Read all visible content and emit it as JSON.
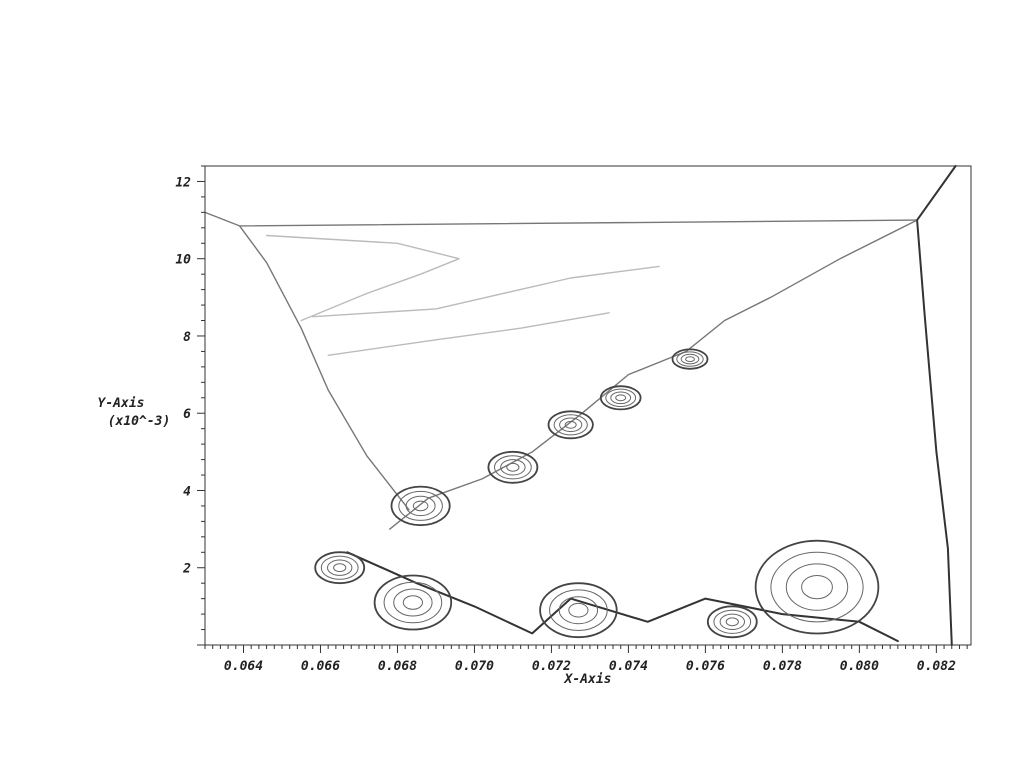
{
  "chart_data": {
    "type": "contour",
    "title": "",
    "xlabel": "X-Axis",
    "ylabel": "Y-Axis",
    "ylabel_scale": "(x10^-3)",
    "xlim": [
      0.063,
      0.0829
    ],
    "ylim": [
      0,
      12.4
    ],
    "x_ticks": [
      0.064,
      0.066,
      0.068,
      0.07,
      0.072,
      0.074,
      0.076,
      0.078,
      0.08,
      0.082
    ],
    "x_tick_labels": [
      "0.064",
      "0.066",
      "0.068",
      "0.070",
      "0.072",
      "0.074",
      "0.076",
      "0.078",
      "0.080",
      "0.082"
    ],
    "y_ticks": [
      2,
      4,
      6,
      8,
      10,
      12
    ],
    "y_tick_labels": [
      "2",
      "4",
      "6",
      "8",
      "10",
      "12"
    ],
    "grid": false,
    "legend": "none",
    "colors": {
      "dark": "#333333",
      "mid": "#777777",
      "light": "#bbbbbb"
    },
    "features": [
      {
        "name": "top-shock",
        "shade": "mid",
        "points": [
          [
            0.0639,
            10.85
          ],
          [
            0.0815,
            11.0
          ]
        ]
      },
      {
        "name": "left-shock",
        "shade": "mid",
        "points": [
          [
            0.063,
            11.2
          ],
          [
            0.0639,
            10.85
          ],
          [
            0.0646,
            9.9
          ],
          [
            0.0655,
            8.2
          ],
          [
            0.0662,
            6.6
          ],
          [
            0.0672,
            4.9
          ],
          [
            0.0683,
            3.5
          ]
        ]
      },
      {
        "name": "slip-line",
        "shade": "mid",
        "points": [
          [
            0.0815,
            11.0
          ],
          [
            0.0795,
            10.0
          ],
          [
            0.0777,
            9.0
          ],
          [
            0.0765,
            8.4
          ],
          [
            0.0755,
            7.6
          ],
          [
            0.074,
            7.0
          ],
          [
            0.0728,
            6.0
          ],
          [
            0.0715,
            5.0
          ],
          [
            0.0702,
            4.3
          ],
          [
            0.0688,
            3.8
          ],
          [
            0.0678,
            3.0
          ]
        ]
      },
      {
        "name": "right-shock",
        "shade": "dark",
        "points": [
          [
            0.0825,
            12.4
          ],
          [
            0.0815,
            11.0
          ],
          [
            0.0817,
            8.5
          ],
          [
            0.082,
            5.0
          ],
          [
            0.0823,
            2.5
          ],
          [
            0.0824,
            0
          ]
        ]
      },
      {
        "name": "upper-contour",
        "shade": "light",
        "points": [
          [
            0.0646,
            10.6
          ],
          [
            0.068,
            10.4
          ],
          [
            0.0696,
            10.0
          ],
          [
            0.0686,
            9.6
          ],
          [
            0.0672,
            9.1
          ],
          [
            0.0655,
            8.4
          ]
        ]
      },
      {
        "name": "middle-contour",
        "shade": "light",
        "points": [
          [
            0.0658,
            8.5
          ],
          [
            0.069,
            8.7
          ],
          [
            0.0725,
            9.5
          ],
          [
            0.0748,
            9.8
          ]
        ]
      },
      {
        "name": "lower-contour",
        "shade": "light",
        "points": [
          [
            0.0662,
            7.5
          ],
          [
            0.069,
            7.9
          ],
          [
            0.0712,
            8.2
          ],
          [
            0.0735,
            8.6
          ]
        ]
      },
      {
        "name": "floor-vortex-band",
        "shade": "dark",
        "points": [
          [
            0.0667,
            2.4
          ],
          [
            0.0685,
            1.6
          ],
          [
            0.07,
            1.0
          ],
          [
            0.0715,
            0.3
          ],
          [
            0.0725,
            1.2
          ],
          [
            0.0745,
            0.6
          ],
          [
            0.076,
            1.2
          ],
          [
            0.078,
            0.8
          ],
          [
            0.08,
            0.6
          ],
          [
            0.081,
            0.1
          ]
        ]
      }
    ],
    "vortices": [
      {
        "x": 0.0665,
        "y": 2.0,
        "r": 0.4
      },
      {
        "x": 0.0684,
        "y": 1.1,
        "r": 0.7
      },
      {
        "x": 0.0686,
        "y": 3.6,
        "r": 0.5
      },
      {
        "x": 0.071,
        "y": 4.6,
        "r": 0.4
      },
      {
        "x": 0.0725,
        "y": 5.7,
        "r": 0.35
      },
      {
        "x": 0.0738,
        "y": 6.4,
        "r": 0.3
      },
      {
        "x": 0.0756,
        "y": 7.4,
        "r": 0.25
      },
      {
        "x": 0.0727,
        "y": 0.9,
        "r": 0.7
      },
      {
        "x": 0.0767,
        "y": 0.6,
        "r": 0.4
      },
      {
        "x": 0.0789,
        "y": 1.5,
        "r": 1.2
      }
    ]
  }
}
